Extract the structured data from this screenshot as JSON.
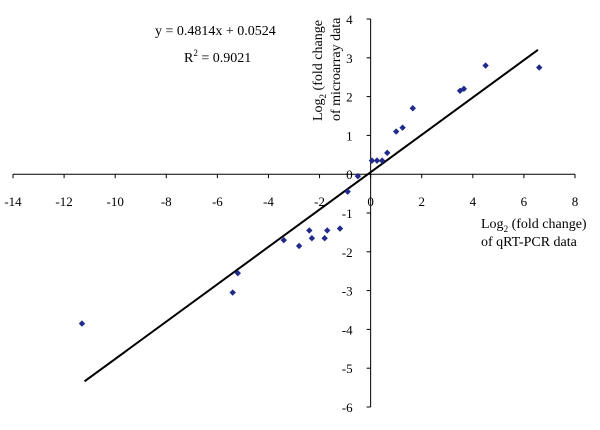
{
  "chart_data": {
    "type": "scatter",
    "title": "",
    "xlabel": {
      "main": "Log",
      "sub": "2",
      "suffix": " (fold change)",
      "line2": "of qRT-PCR data"
    },
    "ylabel": {
      "main": "Log",
      "sub": "2",
      "suffix": " (fold change",
      "line2": "of microarray data"
    },
    "xlim": [
      -14,
      8
    ],
    "ylim": [
      -6,
      4
    ],
    "xticks": [
      -14,
      -12,
      -10,
      -8,
      -6,
      -4,
      -2,
      0,
      2,
      4,
      6,
      8
    ],
    "yticks": [
      -6,
      -5,
      -4,
      -3,
      -2,
      -1,
      0,
      1,
      2,
      3,
      4
    ],
    "grid": false,
    "marker_color": "#1f2a8a",
    "line_color": "#000000",
    "points": [
      {
        "x": -11.3,
        "y": -3.85
      },
      {
        "x": -5.4,
        "y": -3.05
      },
      {
        "x": -5.2,
        "y": -2.55
      },
      {
        "x": -3.4,
        "y": -1.7
      },
      {
        "x": -2.8,
        "y": -1.85
      },
      {
        "x": -2.4,
        "y": -1.45
      },
      {
        "x": -2.3,
        "y": -1.65
      },
      {
        "x": -1.8,
        "y": -1.65
      },
      {
        "x": -1.7,
        "y": -1.45
      },
      {
        "x": -1.2,
        "y": -1.4
      },
      {
        "x": -0.9,
        "y": -0.45
      },
      {
        "x": -0.5,
        "y": -0.05
      },
      {
        "x": 0.05,
        "y": 0.35
      },
      {
        "x": 0.25,
        "y": 0.35
      },
      {
        "x": 0.45,
        "y": 0.35
      },
      {
        "x": 0.65,
        "y": 0.55
      },
      {
        "x": 1.0,
        "y": 1.1
      },
      {
        "x": 1.25,
        "y": 1.2
      },
      {
        "x": 1.65,
        "y": 1.7
      },
      {
        "x": 3.5,
        "y": 2.15
      },
      {
        "x": 3.65,
        "y": 2.2
      },
      {
        "x": 4.5,
        "y": 2.8
      },
      {
        "x": 6.6,
        "y": 2.75
      }
    ],
    "trendline": {
      "slope": 0.4814,
      "intercept": 0.0524,
      "x_range": [
        -11.2,
        6.55
      ],
      "equation": "y = 0.4814x + 0.0524",
      "r2_label": "R",
      "r2_sup": "2",
      "r2_value": " = 0.9021"
    }
  }
}
